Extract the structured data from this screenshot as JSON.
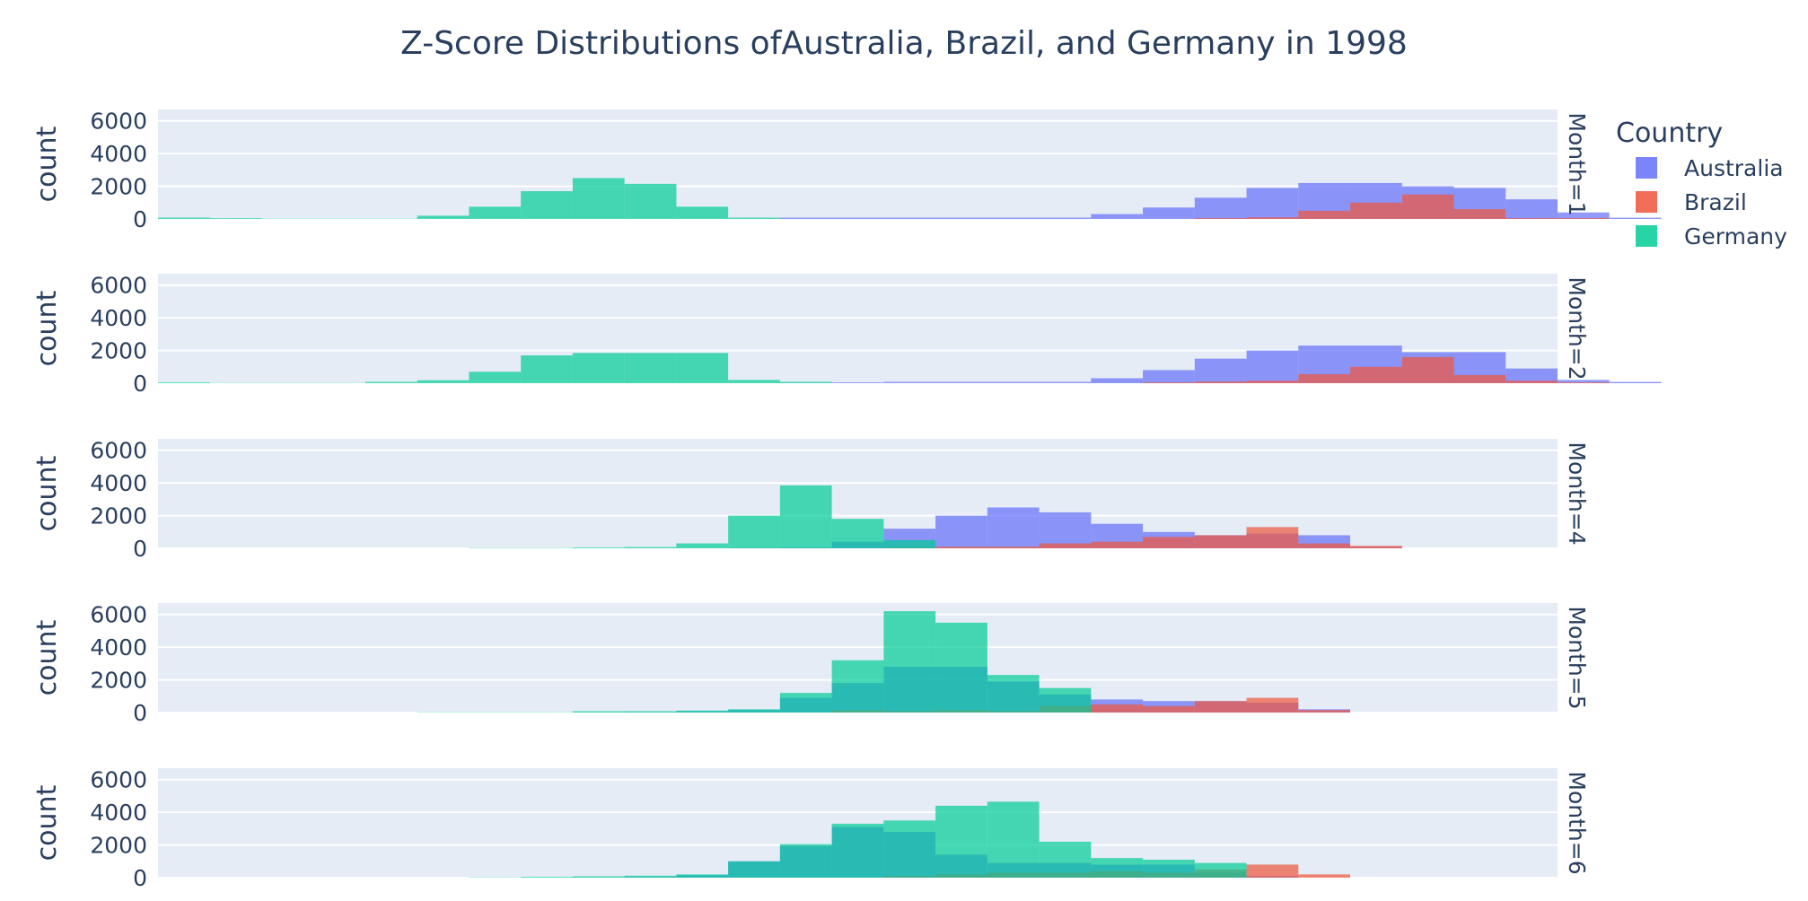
{
  "chart_data": {
    "type": "bar",
    "title": "Z-Score Distributions ofAustralia, Brazil, and Germany in 1998",
    "ylabel": "count",
    "ylim": [
      0,
      6700
    ],
    "yticks": [
      "0",
      "2000",
      "4000",
      "6000"
    ],
    "barmode": "overlay",
    "legend": {
      "title": "Country",
      "position": "top-right"
    },
    "series_colors": {
      "Australia": "#636efa",
      "Brazil": "#ef553b",
      "Germany": "#00cc96"
    },
    "bin_start": -4.5,
    "bin_width": 0.2,
    "x_min": -4.5,
    "x_max": 0.9,
    "facets": [
      {
        "label": "Month=1",
        "series": [
          {
            "name": "Australia",
            "values": [
              0,
              0,
              0,
              0,
              0,
              0,
              0,
              0,
              0,
              0,
              0,
              0,
              0,
              0,
              0,
              0,
              0,
              0,
              0,
              0,
              0,
              0,
              0,
              0,
              0,
              0,
              0,
              0,
              0,
              0,
              0,
              0,
              0,
              0,
              0,
              0,
              0,
              0,
              0,
              0,
              0,
              0,
              0,
              0,
              0,
              0,
              0,
              0,
              0,
              0,
              0,
              0,
              0,
              0,
              0,
              0,
              0,
              0,
              0,
              0,
              0,
              0,
              0,
              0,
              0,
              0,
              0,
              0,
              0,
              0,
              0,
              0,
              0,
              0,
              0,
              0,
              0,
              0,
              0,
              0,
              0,
              0,
              0,
              0,
              0,
              0,
              0,
              0,
              0,
              0,
              0,
              0,
              0,
              0,
              0,
              0,
              0,
              0,
              0,
              0,
              0,
              0,
              0,
              0,
              0,
              0,
              0,
              0,
              0,
              0,
              0,
              0,
              0,
              0,
              0,
              0,
              0,
              0,
              0,
              0,
              0,
              0,
              0,
              0,
              0,
              0,
              0,
              0,
              0,
              0
            ]
          },
          {
            "name": "Brazil",
            "values": []
          },
          {
            "name": "Germany",
            "values": []
          }
        ]
      }
    ]
  },
  "legend_items": [
    "Australia",
    "Brazil",
    "Germany"
  ]
}
